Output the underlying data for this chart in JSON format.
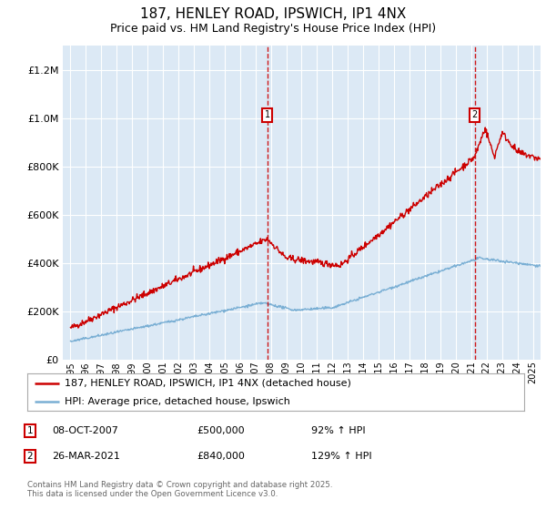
{
  "title": "187, HENLEY ROAD, IPSWICH, IP1 4NX",
  "subtitle": "Price paid vs. HM Land Registry's House Price Index (HPI)",
  "bg_color": "#dce9f5",
  "red_color": "#cc0000",
  "blue_color": "#7aafd4",
  "marker1_x": 2007.77,
  "marker2_x": 2021.23,
  "ylim": [
    0,
    1300000
  ],
  "xlim": [
    1994.5,
    2025.5
  ],
  "yticks": [
    0,
    200000,
    400000,
    600000,
    800000,
    1000000,
    1200000
  ],
  "xticks": [
    1995,
    1996,
    1997,
    1998,
    1999,
    2000,
    2001,
    2002,
    2003,
    2004,
    2005,
    2006,
    2007,
    2008,
    2009,
    2010,
    2011,
    2012,
    2013,
    2014,
    2015,
    2016,
    2017,
    2018,
    2019,
    2020,
    2021,
    2022,
    2023,
    2024,
    2025
  ],
  "legend_line1": "187, HENLEY ROAD, IPSWICH, IP1 4NX (detached house)",
  "legend_line2": "HPI: Average price, detached house, Ipswich",
  "annotation1_date": "08-OCT-2007",
  "annotation1_price": "£500,000",
  "annotation1_hpi": "92% ↑ HPI",
  "annotation2_date": "26-MAR-2021",
  "annotation2_price": "£840,000",
  "annotation2_hpi": "129% ↑ HPI",
  "footer": "Contains HM Land Registry data © Crown copyright and database right 2025.\nThis data is licensed under the Open Government Licence v3.0."
}
